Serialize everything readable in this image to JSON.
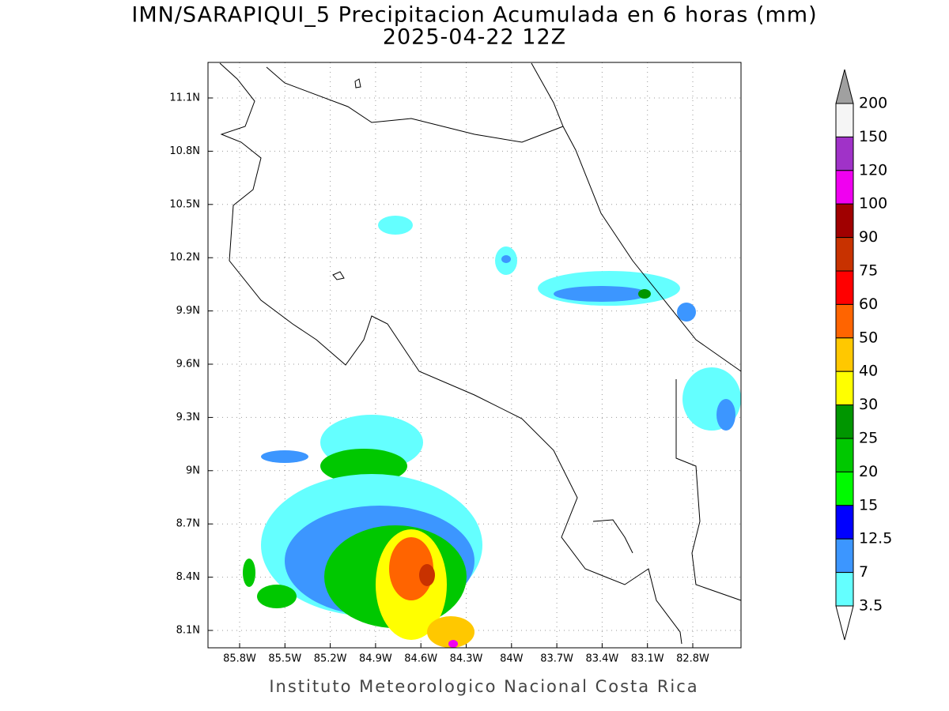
{
  "title": "IMN/SARAPIQUI_5 Precipitacion Acumulada en 6 horas (mm)",
  "subtitle": "2025-04-22 12Z",
  "footer": "Instituto Meteorologico Nacional Costa Rica",
  "lon_labels": [
    "85.8W",
    "85.5W",
    "85.2W",
    "84.9W",
    "84.6W",
    "84.3W",
    "84W",
    "83.7W",
    "83.4W",
    "83.1W",
    "82.8W"
  ],
  "lat_labels": [
    "11.1N",
    "10.8N",
    "10.5N",
    "10.2N",
    "9.9N",
    "9.6N",
    "9.3N",
    "9N",
    "8.7N",
    "8.4N",
    "8.1N"
  ],
  "colorbar": {
    "levels": [
      "200",
      "150",
      "120",
      "100",
      "90",
      "75",
      "60",
      "50",
      "40",
      "30",
      "25",
      "20",
      "15",
      "12.5",
      "7",
      "3.5"
    ],
    "colors": [
      "#f5f5f5",
      "#a032c8",
      "#f000f0",
      "#a00000",
      "#c83200",
      "#ff0000",
      "#ff6400",
      "#ffc800",
      "#ffff00",
      "#009600",
      "#00c800",
      "#00fa00",
      "#0000ff",
      "#3c96ff",
      "#64ffff"
    ]
  }
}
